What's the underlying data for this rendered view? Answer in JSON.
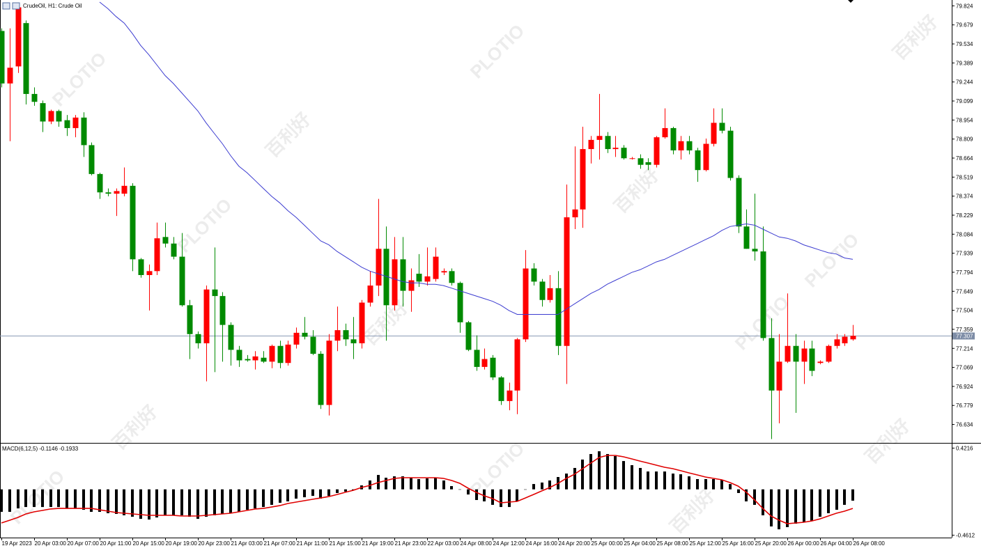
{
  "chart_data": [
    {
      "type": "candlestick",
      "title": "CrudeOil, H1: Crude Oil",
      "watermark": [
        "PLOTIO",
        "百利好"
      ],
      "categories": [
        "19 Apr 2023",
        null,
        null,
        null,
        "20 Apr 03:00",
        null,
        null,
        null,
        "20 Apr 07:00",
        null,
        null,
        null,
        "20 Apr 11:00",
        null,
        null,
        null,
        "20 Apr 15:00",
        null,
        null,
        null,
        "20 Apr 19:00",
        null,
        null,
        null,
        "20 Apr 23:00",
        null,
        null,
        null,
        "21 Apr 03:00",
        null,
        null,
        null,
        "21 Apr 07:00",
        null,
        null,
        null,
        "21 Apr 11:00",
        null,
        null,
        null,
        "21 Apr 15:00",
        null,
        null,
        null,
        "21 Apr 19:00",
        null,
        null,
        null,
        "21 Apr 23:00",
        null,
        null,
        null,
        "22 Apr 03:00",
        null,
        null,
        null,
        "24 Apr 08:00",
        null,
        null,
        null,
        "24 Apr 12:00",
        null,
        null,
        null,
        "24 Apr 16:00",
        null,
        null,
        null,
        "24 Apr 20:00",
        null,
        null,
        null,
        "25 Apr 00:00",
        null,
        null,
        null,
        "25 Apr 04:00",
        null,
        null,
        null,
        "25 Apr 08:00",
        null,
        null,
        null,
        "25 Apr 12:00",
        null,
        null,
        null,
        "25 Apr 16:00",
        null,
        null,
        null,
        "25 Apr 20:00",
        null,
        null,
        null,
        "26 Apr 00:00",
        null,
        null,
        null,
        "26 Apr 04:00",
        null,
        null,
        null,
        "26 Apr 08:00"
      ],
      "open": [
        79.63,
        79.23,
        79.36,
        79.69,
        79.15,
        79.08,
        78.94,
        79.02,
        78.95,
        78.89,
        78.97,
        78.76,
        78.54,
        78.4,
        78.39,
        78.39,
        78.45,
        77.89,
        77.77,
        77.8,
        78.06,
        78.01,
        77.91,
        77.54,
        77.32,
        77.25,
        77.66,
        77.61,
        77.39,
        77.2,
        77.13,
        77.12,
        77.14,
        77.11,
        77.23,
        77.1,
        77.24,
        77.33,
        77.3,
        77.17,
        76.78,
        77.27,
        77.35,
        77.28,
        77.25,
        77.56,
        77.69,
        77.97,
        77.54,
        77.89,
        77.65,
        77.78,
        77.72,
        77.74,
        77.79,
        77.8,
        77.71,
        77.41,
        77.2,
        77.07,
        77.14,
        76.99,
        76.81,
        76.89,
        77.28,
        77.82,
        77.72,
        77.58,
        77.67,
        77.23,
        78.21,
        78.27,
        78.73,
        78.8,
        78.83,
        78.73,
        78.74,
        78.66,
        78.66,
        78.63,
        78.61,
        78.82,
        78.89,
        78.72,
        78.79,
        78.72,
        78.57,
        78.77,
        78.93,
        78.87,
        78.51,
        78.14,
        77.97,
        77.95,
        77.29,
        76.89,
        77.11,
        77.23,
        77.11,
        77.21,
        77.1,
        77.11,
        77.23,
        77.25,
        77.28
      ],
      "high": [
        79.65,
        79.65,
        79.84,
        79.71,
        79.2,
        79.1,
        79.03,
        79.03,
        78.99,
        78.99,
        79.01,
        78.78,
        78.55,
        78.43,
        78.43,
        78.59,
        78.47,
        77.9,
        77.85,
        78.17,
        78.17,
        78.06,
        78.09,
        77.58,
        77.34,
        77.69,
        77.98,
        77.64,
        77.41,
        77.23,
        77.16,
        77.19,
        77.19,
        77.24,
        77.27,
        77.27,
        77.37,
        77.45,
        77.35,
        77.19,
        77.32,
        77.53,
        77.4,
        77.45,
        77.58,
        77.8,
        78.35,
        78.14,
        78.06,
        78.06,
        77.82,
        77.93,
        77.98,
        77.98,
        77.82,
        77.82,
        77.72,
        77.42,
        77.31,
        77.21,
        77.16,
        77.0,
        76.95,
        77.29,
        77.96,
        77.86,
        77.74,
        77.77,
        77.8,
        78.46,
        78.75,
        78.9,
        78.83,
        79.15,
        78.86,
        78.83,
        78.76,
        78.67,
        78.69,
        78.66,
        78.83,
        79.04,
        78.9,
        78.83,
        78.83,
        78.74,
        78.81,
        79.04,
        79.04,
        78.9,
        78.53,
        78.27,
        78.39,
        78.14,
        77.44,
        77.32,
        77.63,
        77.32,
        77.27,
        77.27,
        77.12,
        77.24,
        77.32,
        77.32,
        77.39
      ],
      "low": [
        79.2,
        78.79,
        79.31,
        79.07,
        79.06,
        78.86,
        78.92,
        78.9,
        78.83,
        78.82,
        78.67,
        78.53,
        78.35,
        78.37,
        78.22,
        78.37,
        77.8,
        77.75,
        77.5,
        77.77,
        77.98,
        77.89,
        77.53,
        77.13,
        77.21,
        76.96,
        77.03,
        77.11,
        77.08,
        77.07,
        77.11,
        77.05,
        77.1,
        77.06,
        77.06,
        77.08,
        77.21,
        77.28,
        77.16,
        76.75,
        76.7,
        77.19,
        77.23,
        77.13,
        77.21,
        77.53,
        77.61,
        77.27,
        77.5,
        77.53,
        77.49,
        77.68,
        77.69,
        77.72,
        77.77,
        77.69,
        77.33,
        77.19,
        77.04,
        77.05,
        76.97,
        76.78,
        76.74,
        76.71,
        77.26,
        77.69,
        77.53,
        77.56,
        77.16,
        76.94,
        78.12,
        78.13,
        78.62,
        78.65,
        78.7,
        78.67,
        78.65,
        78.65,
        78.58,
        78.57,
        78.59,
        78.81,
        78.69,
        78.65,
        78.69,
        78.48,
        78.56,
        78.75,
        78.85,
        78.49,
        78.09,
        77.97,
        77.88,
        77.27,
        76.52,
        76.64,
        77.1,
        76.72,
        76.94,
        77.0,
        77.09,
        77.1,
        77.21,
        77.23,
        77.27
      ],
      "close": [
        79.23,
        79.35,
        79.81,
        79.15,
        79.09,
        78.94,
        79.02,
        78.94,
        78.89,
        78.97,
        78.76,
        78.54,
        78.4,
        78.39,
        78.41,
        78.45,
        77.89,
        77.77,
        77.8,
        78.05,
        78.01,
        77.91,
        77.54,
        77.32,
        77.25,
        77.66,
        77.61,
        77.39,
        77.2,
        77.12,
        77.12,
        77.15,
        77.11,
        77.23,
        77.1,
        77.24,
        77.33,
        77.3,
        77.17,
        76.78,
        77.27,
        77.35,
        77.28,
        77.25,
        77.56,
        77.69,
        77.97,
        77.54,
        77.89,
        77.65,
        77.73,
        77.72,
        77.76,
        77.91,
        77.8,
        77.71,
        77.41,
        77.2,
        77.07,
        77.13,
        76.99,
        76.81,
        76.89,
        77.28,
        77.82,
        77.72,
        77.58,
        77.67,
        77.23,
        78.21,
        78.27,
        78.73,
        78.8,
        78.83,
        78.73,
        78.74,
        78.66,
        78.66,
        78.61,
        78.61,
        78.82,
        78.89,
        78.72,
        78.79,
        78.72,
        78.57,
        78.77,
        78.93,
        78.87,
        78.51,
        78.14,
        77.97,
        77.95,
        77.29,
        76.89,
        77.11,
        77.23,
        77.11,
        77.21,
        77.04,
        77.11,
        77.23,
        77.28,
        77.3,
        77.307
      ],
      "up_color": "#ff0000",
      "down_color": "#008a00",
      "moving_average": {
        "color": "#3b3bd0",
        "values": [
          null,
          null,
          null,
          null,
          null,
          null,
          null,
          null,
          null,
          null,
          null,
          null,
          79.85,
          79.8,
          79.74,
          79.69,
          79.61,
          79.52,
          79.45,
          79.37,
          79.29,
          79.23,
          79.16,
          79.09,
          79.02,
          78.93,
          78.85,
          78.77,
          78.68,
          78.6,
          78.55,
          78.49,
          78.43,
          78.37,
          78.32,
          78.26,
          78.21,
          78.15,
          78.09,
          78.03,
          78.0,
          77.95,
          77.91,
          77.87,
          77.83,
          77.8,
          77.78,
          77.76,
          77.74,
          77.72,
          77.71,
          77.71,
          77.7,
          77.7,
          77.69,
          77.67,
          77.65,
          77.63,
          77.61,
          77.59,
          77.57,
          77.54,
          77.5,
          77.47,
          77.47,
          77.47,
          77.47,
          77.47,
          77.47,
          77.51,
          77.55,
          77.59,
          77.63,
          77.66,
          77.7,
          77.73,
          77.76,
          77.79,
          77.81,
          77.84,
          77.87,
          77.89,
          77.92,
          77.95,
          77.98,
          78.01,
          78.04,
          78.07,
          78.11,
          78.14,
          78.15,
          78.16,
          78.15,
          78.12,
          78.09,
          78.06,
          78.05,
          78.03,
          78.0,
          77.98,
          77.96,
          77.94,
          77.93,
          77.9,
          77.89
        ]
      },
      "last_price": 77.307,
      "last_price_color": "#8a9ab5",
      "ylim": [
        76.491,
        79.866
      ],
      "yticks": [
        79.824,
        79.679,
        79.534,
        79.389,
        79.244,
        79.099,
        78.954,
        78.809,
        78.664,
        78.519,
        78.374,
        78.229,
        78.084,
        77.939,
        77.794,
        77.649,
        77.504,
        77.359,
        77.214,
        77.069,
        76.924,
        76.779,
        76.634
      ]
    },
    {
      "type": "macd",
      "label": "MACD(6,12,5) -0.1146 -0.1933",
      "histogram": {
        "color": "#000000",
        "values": [
          -0.228,
          -0.228,
          -0.193,
          -0.179,
          -0.179,
          -0.179,
          -0.179,
          -0.179,
          -0.193,
          -0.193,
          -0.207,
          -0.228,
          -0.228,
          -0.242,
          -0.249,
          -0.263,
          -0.278,
          -0.299,
          -0.306,
          -0.285,
          -0.263,
          -0.263,
          -0.263,
          -0.278,
          -0.299,
          -0.278,
          -0.263,
          -0.249,
          -0.242,
          -0.228,
          -0.207,
          -0.193,
          -0.179,
          -0.157,
          -0.136,
          -0.122,
          -0.094,
          -0.08,
          -0.066,
          -0.094,
          -0.066,
          -0.037,
          -0.023,
          -0.009,
          0.04,
          0.09,
          0.146,
          0.118,
          0.132,
          0.132,
          0.118,
          0.104,
          0.111,
          0.118,
          0.09,
          0.033,
          -0.002,
          -0.052,
          -0.108,
          -0.122,
          -0.157,
          -0.179,
          -0.179,
          -0.122,
          -0.002,
          0.054,
          0.069,
          0.09,
          0.125,
          0.16,
          0.217,
          0.302,
          0.358,
          0.386,
          0.358,
          0.337,
          0.287,
          0.245,
          0.217,
          0.181,
          0.181,
          0.181,
          0.16,
          0.153,
          0.132,
          0.104,
          0.104,
          0.104,
          0.097,
          0.054,
          -0.037,
          -0.122,
          -0.157,
          -0.263,
          -0.376,
          -0.405,
          -0.383,
          -0.348,
          -0.334,
          -0.32,
          -0.278,
          -0.242,
          -0.207,
          -0.157,
          -0.1146
        ]
      },
      "signal": {
        "color": "#e00000",
        "values": [
          -0.341,
          -0.313,
          -0.285,
          -0.249,
          -0.228,
          -0.214,
          -0.199,
          -0.193,
          -0.193,
          -0.193,
          -0.193,
          -0.193,
          -0.207,
          -0.221,
          -0.235,
          -0.242,
          -0.249,
          -0.256,
          -0.263,
          -0.263,
          -0.263,
          -0.263,
          -0.27,
          -0.27,
          -0.27,
          -0.263,
          -0.256,
          -0.249,
          -0.242,
          -0.228,
          -0.214,
          -0.199,
          -0.193,
          -0.179,
          -0.165,
          -0.143,
          -0.129,
          -0.115,
          -0.101,
          -0.087,
          -0.073,
          -0.052,
          -0.03,
          -0.009,
          0.019,
          0.04,
          0.069,
          0.09,
          0.111,
          0.118,
          0.118,
          0.118,
          0.118,
          0.118,
          0.111,
          0.09,
          0.061,
          0.012,
          -0.03,
          -0.066,
          -0.094,
          -0.136,
          -0.129,
          -0.122,
          -0.087,
          -0.052,
          -0.016,
          0.019,
          0.061,
          0.111,
          0.153,
          0.21,
          0.266,
          0.323,
          0.344,
          0.344,
          0.33,
          0.309,
          0.287,
          0.266,
          0.245,
          0.224,
          0.21,
          0.189,
          0.167,
          0.146,
          0.125,
          0.111,
          0.097,
          0.069,
          0.033,
          -0.03,
          -0.108,
          -0.193,
          -0.27,
          -0.313,
          -0.348,
          -0.341,
          -0.334,
          -0.32,
          -0.299,
          -0.27,
          -0.242,
          -0.221,
          -0.1933
        ]
      },
      "ylim": [
        -0.489,
        0.464
      ],
      "yticks": [
        0.4216,
        -0.4612
      ]
    }
  ]
}
